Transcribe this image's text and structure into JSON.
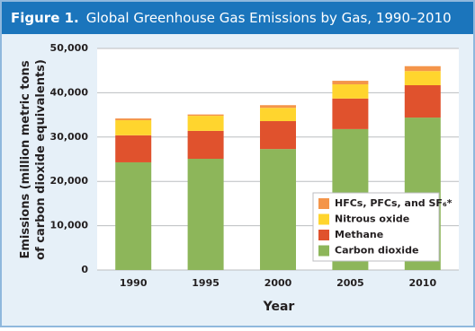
{
  "figure_label": "Figure 1.",
  "chart_data": {
    "type": "stacked-bar",
    "title": "Global Greenhouse Gas Emissions by Gas, 1990–2010",
    "x_label": "Year",
    "y_label": [
      "Emissions (million metric tons",
      "of carbon dioxide equivalents)"
    ],
    "categories": [
      "1990",
      "1995",
      "2000",
      "2005",
      "2010"
    ],
    "series": [
      {
        "name": "Carbon dioxide",
        "color": "#8db65a",
        "values": [
          24300,
          25100,
          27300,
          31800,
          34400
        ]
      },
      {
        "name": "Methane",
        "color": "#e0522d",
        "values": [
          6100,
          6300,
          6300,
          6900,
          7300
        ]
      },
      {
        "name": "Nitrous oxide",
        "color": "#ffd52e",
        "values": [
          3400,
          3400,
          3000,
          3200,
          3200
        ]
      },
      {
        "name": "HFCs, PFCs, and SF₆*",
        "color": "#f4954a",
        "values": [
          400,
          300,
          600,
          800,
          1100
        ]
      }
    ],
    "ylim": [
      0,
      50000
    ],
    "yticks": [
      0,
      {
        "value": 10000,
        "label": "10,000"
      },
      {
        "value": 20000,
        "label": "20,000"
      },
      {
        "value": 30000,
        "label": "30,000"
      },
      {
        "value": 40000,
        "label": "40,000"
      },
      {
        "value": 50000,
        "label": "50,000"
      }
    ],
    "grid": true,
    "legend": "lower-right"
  }
}
